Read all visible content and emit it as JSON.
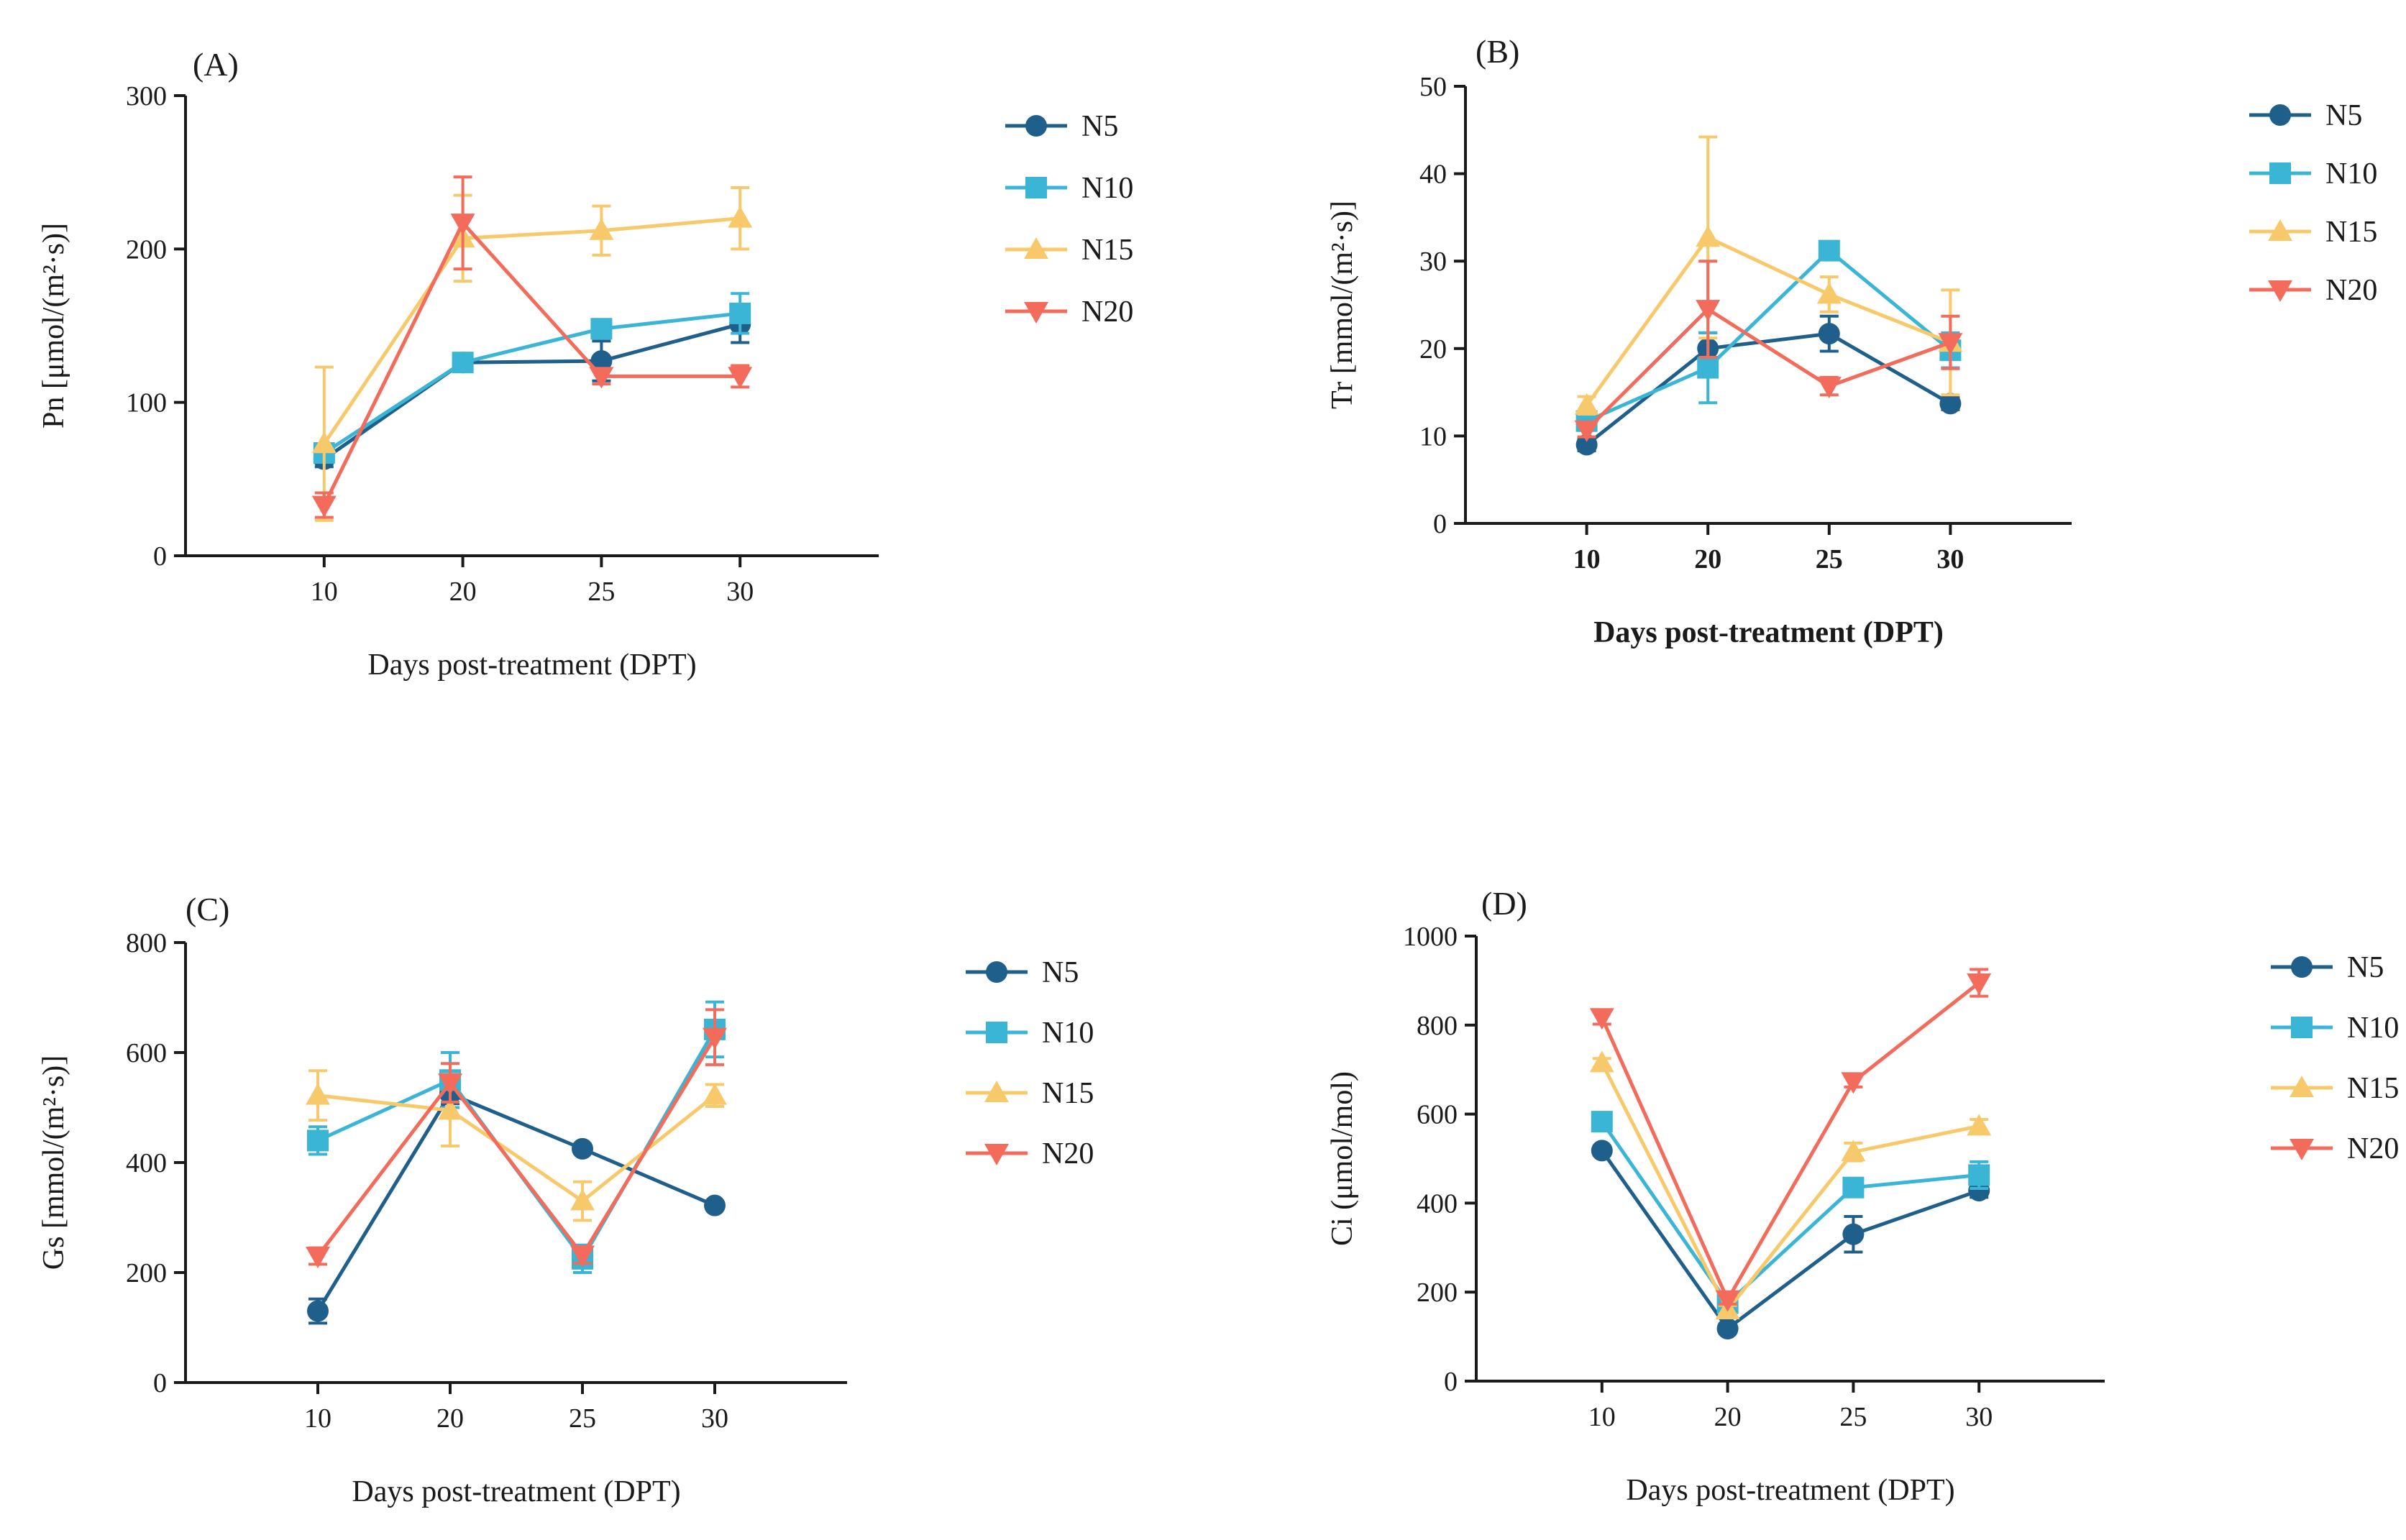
{
  "figure": {
    "colors": {
      "N5": "#1f5f8b",
      "N10": "#3bb5d6",
      "N15": "#f8c96a",
      "N20": "#f26b5b"
    },
    "markers": {
      "N5": "circle",
      "N10": "square",
      "N15": "triangle-up",
      "N20": "triangle-down"
    }
  },
  "chart_data": [
    {
      "panel": "(A)",
      "type": "line",
      "xlabel": "Days post-treatment (DPT)",
      "ylabel": "Pn [μmol/(m²·s)]",
      "categories": [
        "10",
        "20",
        "25",
        "30"
      ],
      "ylim": [
        0,
        300
      ],
      "yticks": [
        0,
        100,
        200,
        300
      ],
      "series": [
        {
          "name": "N5",
          "values": [
            63,
            126,
            127,
            151
          ],
          "errors": [
            5,
            5,
            13,
            12
          ]
        },
        {
          "name": "N10",
          "values": [
            67,
            126,
            148,
            158
          ],
          "errors": [
            5,
            4,
            5,
            13
          ]
        },
        {
          "name": "N15",
          "values": [
            73,
            207,
            212,
            220
          ],
          "errors": [
            50,
            28,
            16,
            20
          ]
        },
        {
          "name": "N20",
          "values": [
            33,
            217,
            117,
            117
          ],
          "errors": [
            8,
            30,
            5,
            7
          ]
        }
      ]
    },
    {
      "panel": "(B)",
      "type": "line",
      "xlabel": "Days post-treatment (DPT)",
      "ylabel": "Tr [mmol/(m²·s)]",
      "categories": [
        "10",
        "20",
        "25",
        "30"
      ],
      "ylim": [
        0,
        50
      ],
      "yticks": [
        0,
        10,
        20,
        30,
        40,
        50
      ],
      "series": [
        {
          "name": "N5",
          "values": [
            9,
            20,
            21.7,
            13.7
          ],
          "errors": [
            0.7,
            1.8,
            2,
            0.7
          ]
        },
        {
          "name": "N10",
          "values": [
            11.7,
            17.8,
            31.2,
            19.8
          ],
          "errors": [
            1,
            4,
            1,
            2
          ]
        },
        {
          "name": "N15",
          "values": [
            13.5,
            32.7,
            26.2,
            20.7
          ],
          "errors": [
            1,
            11.5,
            2,
            6
          ]
        },
        {
          "name": "N20",
          "values": [
            10.7,
            24.5,
            15.7,
            20.7
          ],
          "errors": [
            0.8,
            5.5,
            1,
            3
          ]
        }
      ]
    },
    {
      "panel": "(C)",
      "type": "line",
      "xlabel": "Days post-treatment (DPT)",
      "ylabel": "Gs [mmol/(m²·s)]",
      "categories": [
        "10",
        "20",
        "25",
        "30"
      ],
      "ylim": [
        0,
        800
      ],
      "yticks": [
        0,
        200,
        400,
        600,
        800
      ],
      "series": [
        {
          "name": "N5",
          "values": [
            130,
            525,
            425,
            322
          ],
          "errors": [
            22,
            18,
            8,
            6
          ]
        },
        {
          "name": "N10",
          "values": [
            440,
            550,
            225,
            642
          ],
          "errors": [
            25,
            50,
            25,
            50
          ]
        },
        {
          "name": "N15",
          "values": [
            522,
            495,
            330,
            522
          ],
          "errors": [
            45,
            65,
            35,
            20
          ]
        },
        {
          "name": "N20",
          "values": [
            230,
            545,
            232,
            628
          ],
          "errors": [
            15,
            35,
            15,
            50
          ]
        }
      ]
    },
    {
      "panel": "(D)",
      "type": "line",
      "xlabel": "Days post-treatment (DPT)",
      "ylabel": "Ci (μmol/mol)",
      "categories": [
        "10",
        "20",
        "25",
        "30"
      ],
      "ylim": [
        0,
        1000
      ],
      "yticks": [
        0,
        200,
        400,
        600,
        800,
        1000
      ],
      "series": [
        {
          "name": "N5",
          "values": [
            518,
            118,
            330,
            428
          ],
          "errors": [
            10,
            10,
            40,
            15
          ]
        },
        {
          "name": "N10",
          "values": [
            583,
            175,
            435,
            463
          ],
          "errors": [
            15,
            10,
            20,
            30
          ]
        },
        {
          "name": "N15",
          "values": [
            715,
            160,
            515,
            573
          ],
          "errors": [
            10,
            10,
            20,
            15
          ]
        },
        {
          "name": "N20",
          "values": [
            817,
            183,
            673,
            895
          ],
          "errors": [
            15,
            10,
            12,
            30
          ]
        }
      ]
    }
  ]
}
